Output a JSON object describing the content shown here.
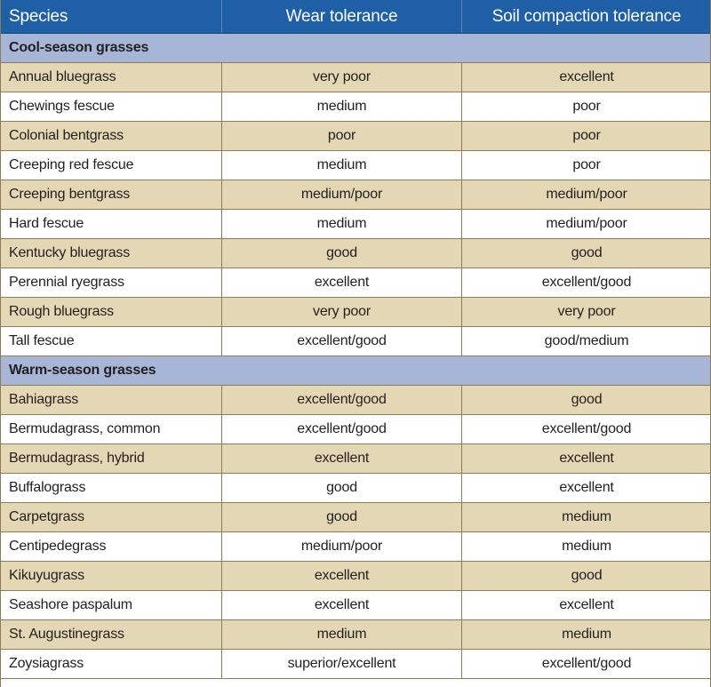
{
  "header": {
    "species": "Species",
    "wear": "Wear tolerance",
    "compaction": "Soil compaction tolerance"
  },
  "sections": [
    {
      "title": "Cool-season grasses",
      "rows": [
        {
          "species": "Annual bluegrass",
          "wear": "very poor",
          "compaction": "excellent"
        },
        {
          "species": "Chewings fescue",
          "wear": "medium",
          "compaction": "poor"
        },
        {
          "species": "Colonial bentgrass",
          "wear": "poor",
          "compaction": "poor"
        },
        {
          "species": "Creeping red fescue",
          "wear": "medium",
          "compaction": "poor"
        },
        {
          "species": "Creeping bentgrass",
          "wear": "medium/poor",
          "compaction": "medium/poor"
        },
        {
          "species": "Hard fescue",
          "wear": "medium",
          "compaction": "medium/poor"
        },
        {
          "species": "Kentucky bluegrass",
          "wear": "good",
          "compaction": "good"
        },
        {
          "species": "Perennial ryegrass",
          "wear": "excellent",
          "compaction": "excellent/good"
        },
        {
          "species": "Rough bluegrass",
          "wear": "very poor",
          "compaction": "very poor"
        },
        {
          "species": "Tall fescue",
          "wear": "excellent/good",
          "compaction": "good/medium"
        }
      ]
    },
    {
      "title": "Warm-season grasses",
      "rows": [
        {
          "species": "Bahiagrass",
          "wear": "excellent/good",
          "compaction": "good"
        },
        {
          "species": "Bermudagrass, common",
          "wear": "excellent/good",
          "compaction": "excellent/good"
        },
        {
          "species": "Bermudagrass, hybrid",
          "wear": "excellent",
          "compaction": "excellent"
        },
        {
          "species": "Buffalograss",
          "wear": "good",
          "compaction": "excellent"
        },
        {
          "species": "Carpetgrass",
          "wear": "good",
          "compaction": "medium"
        },
        {
          "species": "Centipedegrass",
          "wear": "medium/poor",
          "compaction": "medium"
        },
        {
          "species": "Kikuyugrass",
          "wear": "excellent",
          "compaction": "good"
        },
        {
          "species": "Seashore paspalum",
          "wear": "excellent",
          "compaction": "excellent"
        },
        {
          "species": "St. Augustinegrass",
          "wear": "medium",
          "compaction": "medium"
        },
        {
          "species": "Zoysiagrass",
          "wear": "superior/excellent",
          "compaction": "excellent/good"
        }
      ]
    }
  ]
}
